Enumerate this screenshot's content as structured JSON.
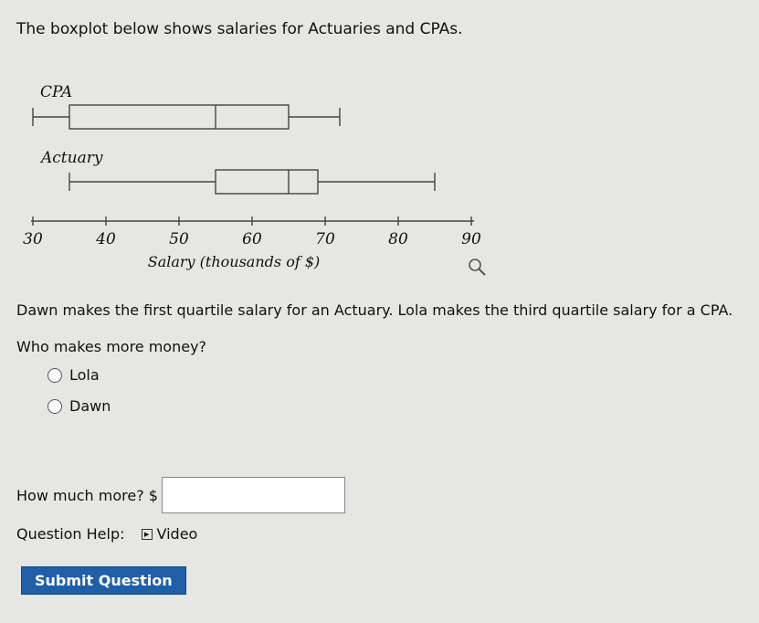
{
  "question": {
    "title": "The boxplot below shows salaries for Actuaries and CPAs.",
    "prompt": "Dawn makes the first quartile salary for an Actuary. Lola makes the third quartile salary for a CPA.",
    "ask": "Who makes more money?",
    "options": [
      "Lola",
      "Dawn"
    ],
    "more_label": "How much more? $",
    "more_value": "",
    "help_label": "Question Help:",
    "video_label": "Video",
    "submit_label": "Submit Question"
  },
  "chart_data": {
    "type": "boxplot",
    "xlabel": "Salary (thousands of $)",
    "xlim": [
      30,
      90
    ],
    "ticks": [
      30,
      40,
      50,
      60,
      70,
      80,
      90
    ],
    "tick_labels": [
      "30",
      "40",
      "50",
      "60",
      "70",
      "80",
      "90"
    ],
    "grid": false,
    "series": [
      {
        "name": "CPA",
        "min": 30,
        "q1": 35,
        "median": 55,
        "q3": 65,
        "max": 72
      },
      {
        "name": "Actuary",
        "min": 35,
        "q1": 55,
        "median": 65,
        "q3": 69,
        "max": 85
      }
    ]
  }
}
